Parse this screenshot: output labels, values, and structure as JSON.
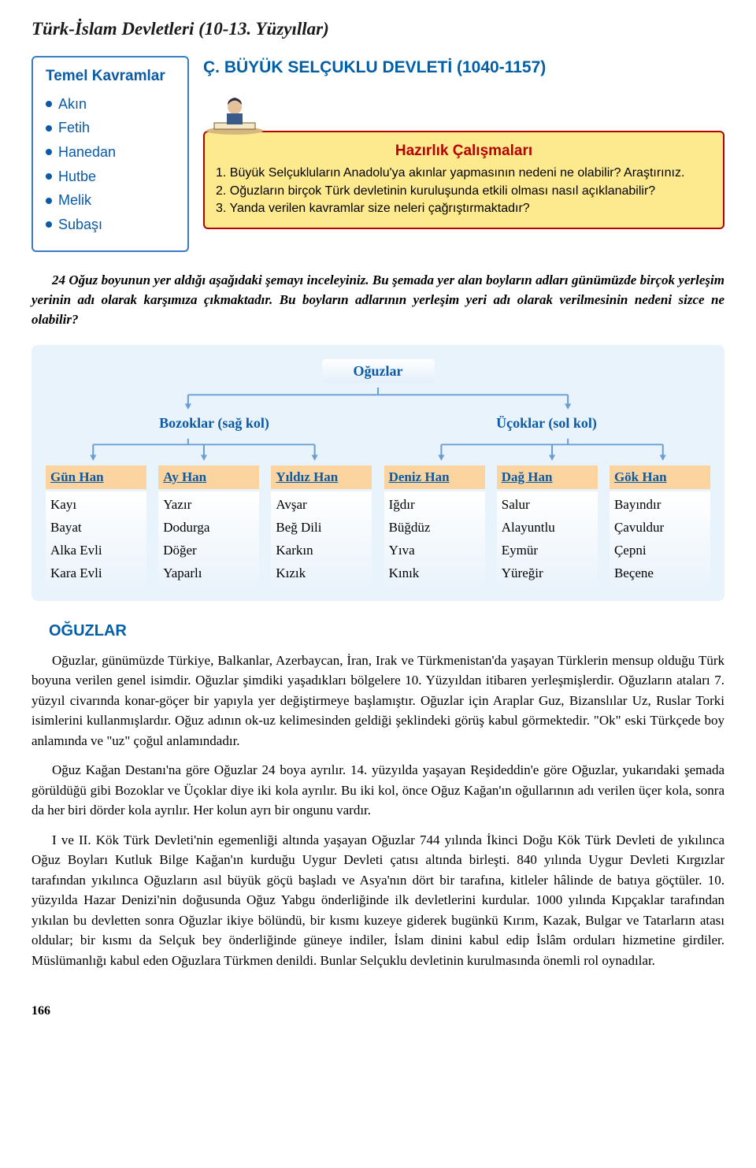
{
  "page_title": "Türk-İslam Devletleri (10-13. Yüzyıllar)",
  "kavramlar": {
    "title": "Temel Kavramlar",
    "items": [
      "Akın",
      "Fetih",
      "Hanedan",
      "Hutbe",
      "Melik",
      "Subaşı"
    ]
  },
  "section_title": "Ç. BÜYÜK SELÇUKLU DEVLETİ (1040-1157)",
  "hazirlik": {
    "title": "Hazırlık Çalışmaları",
    "body": "1. Büyük Selçukluların Anadolu'ya akınlar yapmasının nedeni ne olabilir? Araştırınız.\n2. Oğuzların birçok Türk devletinin kuruluşunda etkili olması nasıl açıklanabilir?\n3. Yanda verilen kavramlar size neleri çağrıştırmaktadır?"
  },
  "activity": "24 Oğuz boyunun yer aldığı aşağıdaki şemayı inceleyiniz. Bu şemada yer alan boyların adları günümüzde birçok yerleşim yerinin adı olarak karşımıza çıkmaktadır. Bu boyların adlarının yerleşim yeri adı olarak verilmesinin nedeni sizce ne olabilir?",
  "schema": {
    "root": "Oğuzlar",
    "branches": [
      {
        "label": "Bozoklar (sağ kol)"
      },
      {
        "label": "Üçoklar (sol kol)"
      }
    ],
    "leaves": [
      {
        "head": "Gün Han",
        "items": [
          "Kayı",
          "Bayat",
          "Alka Evli",
          "Kara Evli"
        ]
      },
      {
        "head": "Ay Han",
        "items": [
          "Yazır",
          "Dodurga",
          "Döğer",
          "Yaparlı"
        ]
      },
      {
        "head": "Yıldız Han",
        "items": [
          "Avşar",
          "Beğ Dili",
          "Karkın",
          "Kızık"
        ]
      },
      {
        "head": "Deniz Han",
        "items": [
          "Iğdır",
          "Büğdüz",
          "Yıva",
          "Kınık"
        ]
      },
      {
        "head": "Dağ Han",
        "items": [
          "Salur",
          "Alayuntlu",
          "Eymür",
          "Yüreğir"
        ]
      },
      {
        "head": "Gök Han",
        "items": [
          "Bayındır",
          "Çavuldur",
          "Çepni",
          "Beçene"
        ]
      }
    ],
    "colors": {
      "schema_bg": "#e8f3fb",
      "leaf_head_bg": "#fbd49f",
      "text_blue": "#0b5aa6",
      "line": "#6a9dd2"
    }
  },
  "oguzlar": {
    "title": "OĞUZLAR",
    "paras": [
      "Oğuzlar, günümüzde Türkiye, Balkanlar, Azerbaycan, İran, Irak ve Türkmenistan'da yaşayan Türklerin mensup olduğu Türk boyuna verilen genel isimdir. Oğuzlar şimdiki yaşadıkları bölgelere 10. Yüzyıldan itibaren yerleşmişlerdir. Oğuzların ataları 7. yüzyıl civarında konar-göçer bir yapıyla yer değiştirmeye başlamıştır. Oğuzlar için Araplar Guz, Bizanslılar Uz, Ruslar Torki isimlerini kullanmışlardır. Oğuz adının ok-uz kelimesinden geldiği şeklindeki görüş kabul görmektedir. \"Ok\" eski Türkçede boy anlamında ve \"uz\" çoğul anlamındadır.",
      "Oğuz Kağan Destanı'na göre Oğuzlar 24 boya ayrılır. 14. yüzyılda yaşayan Reşideddin'e göre Oğuzlar, yukarıdaki şemada görüldüğü gibi Bozoklar ve Üçoklar diye iki kola ayrılır. Bu iki kol, önce Oğuz Kağan'ın oğullarının adı verilen üçer kola, sonra da her biri dörder kola ayrılır. Her kolun ayrı bir ongunu vardır.",
      "I ve II. Kök Türk Devleti'nin egemenliği altında yaşayan Oğuzlar 744 yılında İkinci Doğu Kök Türk Devleti de yıkılınca Oğuz Boyları Kutluk Bilge Kağan'ın kurduğu Uygur Devleti çatısı altında birleşti. 840 yılında Uygur Devleti Kırgızlar tarafından yıkılınca Oğuzların asıl büyük göçü başladı ve Asya'nın dört bir tarafına, kitleler hâlinde de batıya göçtüler. 10. yüzyılda Hazar Denizi'nin doğusunda Oğuz Yabgu önderliğinde ilk devletlerini kurdular. 1000 yılında Kıpçaklar tarafından yıkılan bu devletten sonra Oğuzlar ikiye bölündü, bir kısmı kuzeye giderek bugünkü Kırım, Kazak, Bulgar ve Tatarların atası oldular; bir kısmı da Selçuk bey önderliğinde güneye indiler, İslam dinini kabul edip İslâm orduları hizmetine girdiler. Müslümanlığı kabul eden Oğuzlara Türkmen denildi. Bunlar Selçuklu devletinin kurulmasında önemli rol oynadılar."
    ]
  },
  "page_number": "166"
}
